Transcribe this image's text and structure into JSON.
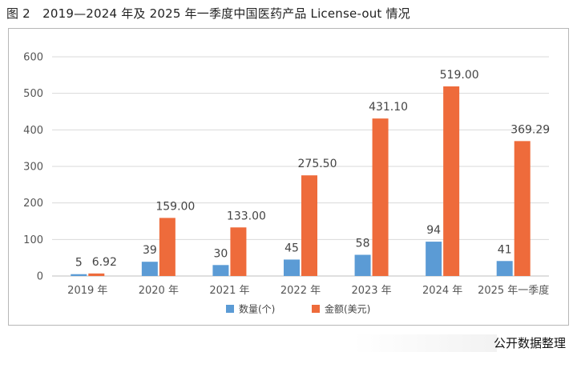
{
  "figure_title": "图 2　2019—2024 年及 2025 年一季度中国医药产品 License-out 情况",
  "source_text": "公开数据整理",
  "colors": {
    "count": "#5b9bd5",
    "amount": "#ee6b3b",
    "grid": "#d9d9d9",
    "axis": "#bfbfbf"
  },
  "chart_data": {
    "type": "bar",
    "title": "",
    "xlabel": "",
    "ylabel": "",
    "ylim": [
      0,
      600
    ],
    "yticks": [
      0,
      100,
      200,
      300,
      400,
      500,
      600
    ],
    "grid": true,
    "legend_position": "bottom",
    "categories": [
      "2019 年",
      "2020 年",
      "2021 年",
      "2022 年",
      "2023 年",
      "2024 年",
      "2025 年一季度"
    ],
    "series": [
      {
        "name": "数量(个)",
        "values": [
          5,
          39,
          30,
          45,
          58,
          94,
          41
        ],
        "labels": [
          "5",
          "39",
          "30",
          "45",
          "58",
          "94",
          "41"
        ]
      },
      {
        "name": "金额(美元)",
        "values": [
          6.92,
          159.0,
          133.0,
          275.5,
          431.1,
          519.0,
          369.29
        ],
        "labels": [
          "6.92",
          "159.00",
          "133.00",
          "275.50",
          "431.10",
          "519.00",
          "369.29"
        ]
      }
    ]
  }
}
